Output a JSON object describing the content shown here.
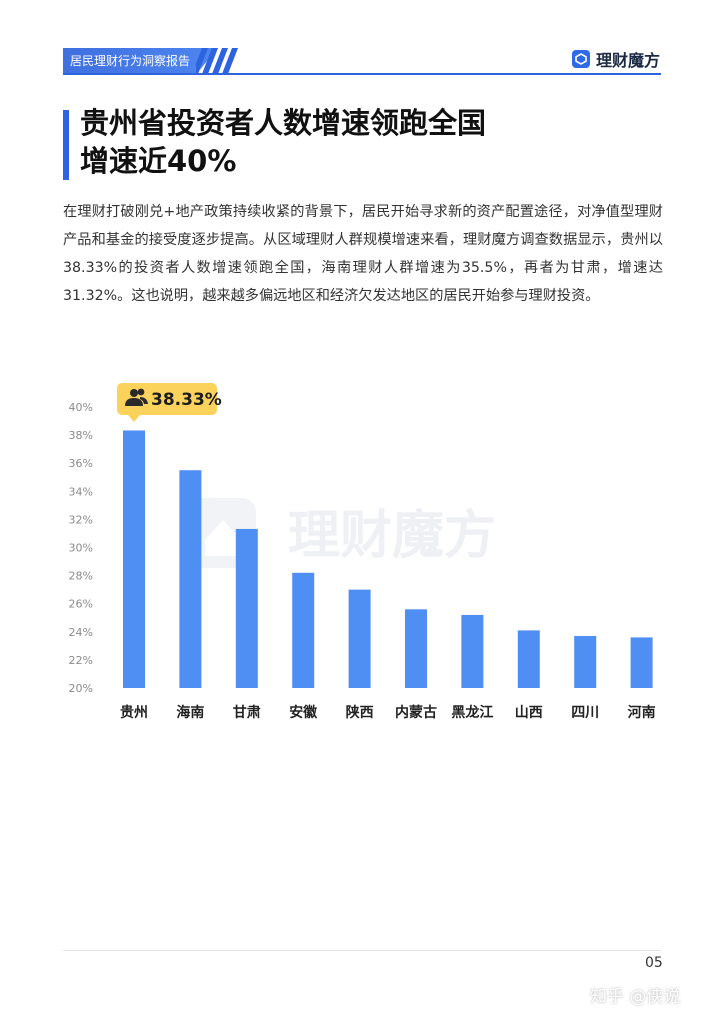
{
  "header": {
    "report_title": "居民理财行为洞察报告",
    "brand": "理财魔方",
    "brand_color": "#2d63df"
  },
  "headline": {
    "line1": "贵州省投资者人数增速领跑全国",
    "line2": "增速近40%"
  },
  "body_text": "在理财打破刚兑+地产政策持续收紧的背景下，居民开始寻求新的资产配置途径，对净值型理财产品和基金的接受度逐步提高。从区域理财人群规模增速来看，理财魔方调查数据显示，贵州以38.33%的投资者人数增速领跑全国，海南理财人群增速为35.5%，再者为甘肃，增速达31.32%。这也说明，越来越多偏远地区和经济欠发达地区的居民开始参与理财投资。",
  "watermark": "理财魔方",
  "chart_data": {
    "type": "bar",
    "categories": [
      "贵州",
      "海南",
      "甘肃",
      "安徽",
      "陕西",
      "内蒙古",
      "黑龙江",
      "山西",
      "四川",
      "河南"
    ],
    "values": [
      38.33,
      35.5,
      31.32,
      28.2,
      27.0,
      25.6,
      25.2,
      24.1,
      23.7,
      23.6
    ],
    "y_ticks": [
      "20%",
      "22%",
      "24%",
      "26%",
      "28%",
      "30%",
      "32%",
      "34%",
      "36%",
      "38%",
      "40%"
    ],
    "ylim": [
      20,
      40
    ],
    "callout": "38.33%",
    "bar_color": "#4f8ef3",
    "callout_color": "#fbd35c",
    "grid": false
  },
  "footer": {
    "page_number": "05",
    "attribution": "知乎 @侠说"
  }
}
